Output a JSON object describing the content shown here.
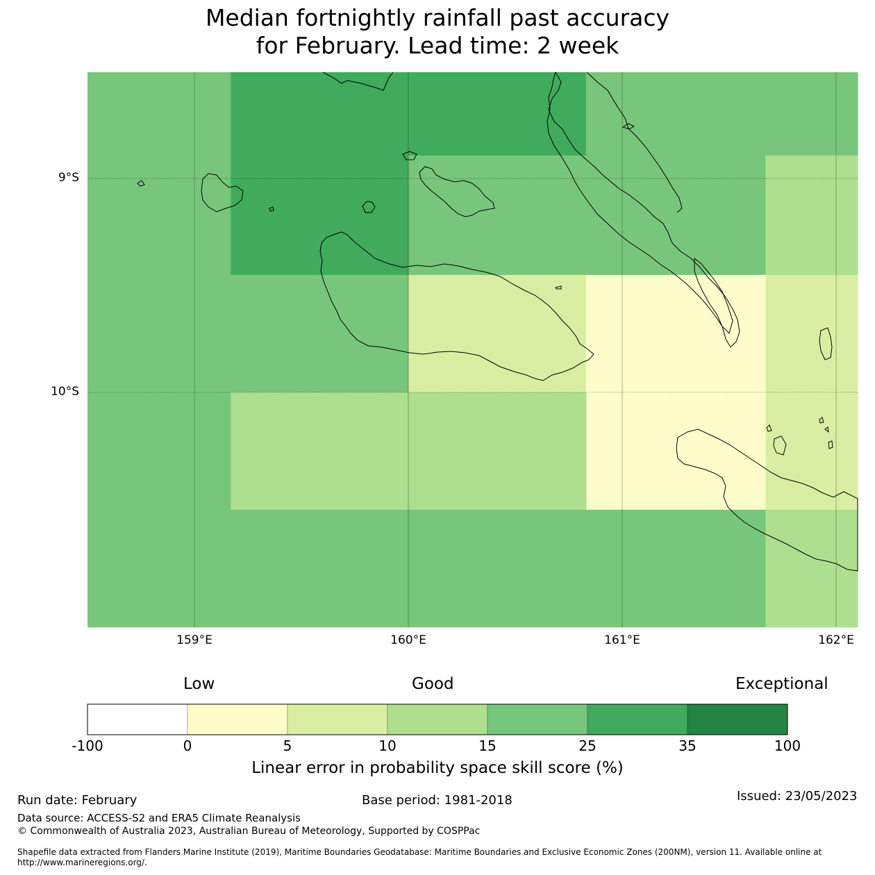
{
  "title": {
    "line1": "Median fortnightly rainfall past accuracy",
    "line2": "for February. Lead time: 2 week"
  },
  "map": {
    "lat_labels": [
      "9°S",
      "10°S"
    ],
    "lon_labels": [
      "159°E",
      "160°E",
      "161°E",
      "162°E"
    ],
    "extent": {
      "lon": [
        158.5,
        162.1
      ],
      "lat": [
        -8.5,
        -11.1
      ]
    },
    "grid_cells": [
      {
        "lon": [
          158.5,
          159.17
        ],
        "lat": [
          -8.5,
          -11.1
        ],
        "skill": "15-25"
      },
      {
        "lon": [
          159.17,
          160.0
        ],
        "lat": [
          -8.5,
          -9.45
        ],
        "skill": "25-35"
      },
      {
        "lon": [
          160.0,
          160.83
        ],
        "lat": [
          -8.5,
          -8.89
        ],
        "skill": "25-35"
      },
      {
        "lon": [
          160.0,
          160.83
        ],
        "lat": [
          -8.89,
          -9.45
        ],
        "skill": "15-25"
      },
      {
        "lon": [
          160.83,
          161.67
        ],
        "lat": [
          -8.5,
          -9.45
        ],
        "skill": "15-25"
      },
      {
        "lon": [
          161.67,
          162.1
        ],
        "lat": [
          -8.5,
          -8.89
        ],
        "skill": "15-25"
      },
      {
        "lon": [
          161.67,
          162.1
        ],
        "lat": [
          -8.89,
          -9.45
        ],
        "skill": "10-15"
      },
      {
        "lon": [
          159.17,
          160.0
        ],
        "lat": [
          -9.45,
          -10.0
        ],
        "skill": "15-25"
      },
      {
        "lon": [
          160.0,
          160.83
        ],
        "lat": [
          -9.45,
          -10.0
        ],
        "skill": "5-10"
      },
      {
        "lon": [
          160.83,
          161.67
        ],
        "lat": [
          -9.45,
          -10.55
        ],
        "skill": "0-5"
      },
      {
        "lon": [
          161.67,
          162.1
        ],
        "lat": [
          -9.45,
          -10.55
        ],
        "skill": "5-10"
      },
      {
        "lon": [
          159.17,
          160.83
        ],
        "lat": [
          -10.0,
          -10.55
        ],
        "skill": "10-15"
      },
      {
        "lon": [
          159.17,
          161.67
        ],
        "lat": [
          -10.55,
          -11.1
        ],
        "skill": "15-25"
      },
      {
        "lon": [
          161.67,
          162.1
        ],
        "lat": [
          -10.55,
          -11.1
        ],
        "skill": "10-15"
      }
    ]
  },
  "colorbar": {
    "words": {
      "low": "Low",
      "good": "Good",
      "exceptional": "Exceptional"
    },
    "ticks": [
      "-100",
      "0",
      "5",
      "10",
      "15",
      "25",
      "35",
      "100"
    ],
    "bins": [
      {
        "range": "-100-0",
        "color": "#ffffff"
      },
      {
        "range": "0-5",
        "color": "#fdfdcb"
      },
      {
        "range": "5-10",
        "color": "#d9eea2"
      },
      {
        "range": "10-15",
        "color": "#addf8f"
      },
      {
        "range": "15-25",
        "color": "#78c67b"
      },
      {
        "range": "25-35",
        "color": "#41ab5d"
      },
      {
        "range": "35-100",
        "color": "#238443"
      }
    ],
    "label": "Linear error in probability space skill score (%)"
  },
  "footer": {
    "run_date": "Run date: February",
    "base_period": "Base period: 1981-2018",
    "issued": "Issued: 23/05/2023",
    "data_source": "Data source: ACCESS-S2 and ERA5 Climate Reanalysis",
    "copyright": "© Commonwealth of Australia 2023, Australian Bureau of Meteorology, Supported by COSPPac",
    "shapefile": "Shapefile data extracted from Flanders Marine Institute (2019), Maritime Boundaries Geodatabase: Maritime Boundaries and Exclusive Economic Zones (200NM), version 11. Available online at http://www.marineregions.org/."
  }
}
